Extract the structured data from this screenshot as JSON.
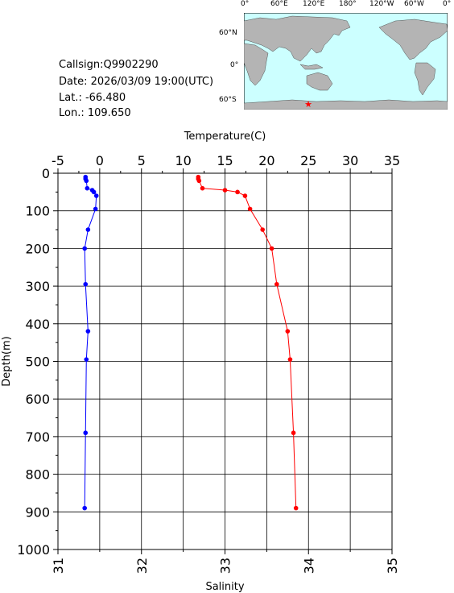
{
  "station": {
    "callsign": "Callsign:Q9902290",
    "date": "Date:  2026/03/09 19:00(UTC)",
    "lat": "Lat.:  -66.480",
    "lon": "Lon.:  109.650"
  },
  "map": {
    "top_labels": [
      "0°",
      "60°E",
      "120°E",
      "180°",
      "120°W",
      "60°W",
      "0°"
    ],
    "left_labels": [
      "60°N",
      "0°",
      "60°S"
    ],
    "station_marker_color": "#ff0000",
    "ocean_color": "#ccffff",
    "land_color": "#b4b4b4"
  },
  "chart_data": {
    "type": "line",
    "ylabel": "Depth(m)",
    "ylim": [
      1000,
      0
    ],
    "yticks": [
      "0",
      "100",
      "200",
      "300",
      "400",
      "500",
      "600",
      "700",
      "800",
      "900",
      "1000"
    ],
    "top_axis": {
      "label": "Temperature(C)",
      "lim": [
        -5,
        35
      ],
      "ticks": [
        "-5",
        "0",
        "5",
        "10",
        "15",
        "20",
        "25",
        "30",
        "35"
      ]
    },
    "bottom_axis": {
      "label": "Salinity",
      "lim": [
        31,
        35
      ],
      "ticks": [
        "31",
        "32",
        "33",
        "34",
        "35"
      ]
    },
    "grid": true,
    "series": [
      {
        "axis": "top",
        "color": "#0000ff",
        "depth": [
          10,
          15,
          20,
          40,
          45,
          50,
          60,
          95,
          150,
          200,
          295,
          420,
          495,
          690,
          890
        ],
        "values": [
          -1.7,
          -1.7,
          -1.6,
          -1.5,
          -0.9,
          -0.7,
          -0.4,
          -0.5,
          -1.4,
          -1.8,
          -1.7,
          -1.4,
          -1.6,
          -1.7,
          -1.8
        ]
      },
      {
        "axis": "bottom",
        "color": "#ff0000",
        "depth": [
          10,
          15,
          20,
          40,
          45,
          50,
          60,
          95,
          150,
          200,
          295,
          420,
          495,
          690,
          890
        ],
        "values": [
          32.68,
          32.68,
          32.69,
          32.73,
          33.0,
          33.15,
          33.24,
          33.3,
          33.45,
          33.56,
          33.62,
          33.75,
          33.78,
          33.82,
          33.85
        ]
      }
    ]
  }
}
